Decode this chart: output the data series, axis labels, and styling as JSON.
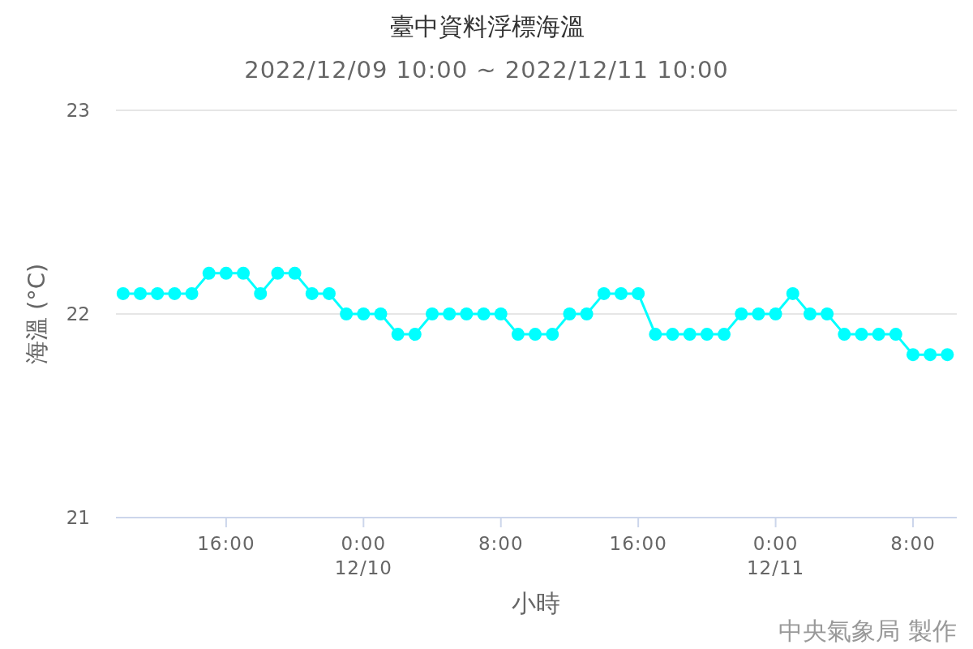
{
  "chart_data": {
    "type": "line",
    "title": "臺中資料浮標海溫",
    "subtitle": "2022/12/09 10:00 ~ 2022/12/11 10:00",
    "xlabel": "小時",
    "ylabel": "海溫 (°C)",
    "annotations": [
      "中央氣象局 製作"
    ],
    "x": [
      "2022-12-09T10:00",
      "2022-12-09T11:00",
      "2022-12-09T12:00",
      "2022-12-09T13:00",
      "2022-12-09T14:00",
      "2022-12-09T15:00",
      "2022-12-09T16:00",
      "2022-12-09T17:00",
      "2022-12-09T18:00",
      "2022-12-09T19:00",
      "2022-12-09T20:00",
      "2022-12-09T21:00",
      "2022-12-09T22:00",
      "2022-12-09T23:00",
      "2022-12-10T00:00",
      "2022-12-10T01:00",
      "2022-12-10T02:00",
      "2022-12-10T03:00",
      "2022-12-10T04:00",
      "2022-12-10T05:00",
      "2022-12-10T06:00",
      "2022-12-10T07:00",
      "2022-12-10T08:00",
      "2022-12-10T09:00",
      "2022-12-10T10:00",
      "2022-12-10T11:00",
      "2022-12-10T12:00",
      "2022-12-10T13:00",
      "2022-12-10T14:00",
      "2022-12-10T15:00",
      "2022-12-10T16:00",
      "2022-12-10T17:00",
      "2022-12-10T18:00",
      "2022-12-10T19:00",
      "2022-12-10T20:00",
      "2022-12-10T21:00",
      "2022-12-10T22:00",
      "2022-12-10T23:00",
      "2022-12-11T00:00",
      "2022-12-11T01:00",
      "2022-12-11T02:00",
      "2022-12-11T03:00",
      "2022-12-11T04:00",
      "2022-12-11T05:00",
      "2022-12-11T06:00",
      "2022-12-11T07:00",
      "2022-12-11T08:00",
      "2022-12-11T09:00",
      "2022-12-11T10:00"
    ],
    "values": [
      22.1,
      22.1,
      22.1,
      22.1,
      22.1,
      22.2,
      22.2,
      22.2,
      22.1,
      22.2,
      22.2,
      22.1,
      22.1,
      22.0,
      22.0,
      22.0,
      21.9,
      21.9,
      22.0,
      22.0,
      22.0,
      22.0,
      22.0,
      21.9,
      21.9,
      21.9,
      22.0,
      22.0,
      22.1,
      22.1,
      22.1,
      21.9,
      21.9,
      21.9,
      21.9,
      21.9,
      22.0,
      22.0,
      22.0,
      22.1,
      22.0,
      22.0,
      21.9,
      21.9,
      21.9,
      21.9,
      21.8,
      21.8,
      21.8
    ],
    "color": "#00ffff",
    "marker": "circle",
    "grid": "y",
    "ylim": [
      21,
      23
    ],
    "yticks": [
      21,
      22,
      23
    ],
    "xlim": [
      "2022-12-09T09:35",
      "2022-12-11T10:33"
    ],
    "xticks": [
      {
        "value": "2022-12-09T16:00",
        "label": "16:00"
      },
      {
        "value": "2022-12-10T00:00",
        "label": "0:00\n12/10"
      },
      {
        "value": "2022-12-10T08:00",
        "label": "8:00"
      },
      {
        "value": "2022-12-10T16:00",
        "label": "16:00"
      },
      {
        "value": "2022-12-11T00:00",
        "label": "0:00\n12/11"
      },
      {
        "value": "2022-12-11T08:00",
        "label": "8:00"
      }
    ]
  }
}
